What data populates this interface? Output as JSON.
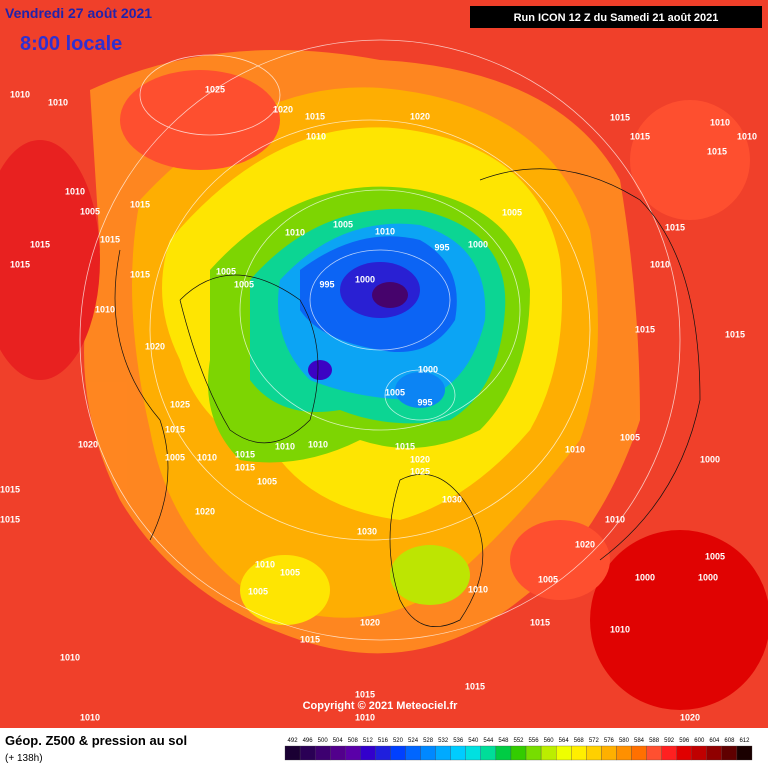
{
  "header": {
    "date": "Vendredi 27 août 2021",
    "time": "8:00 locale",
    "run": "Run ICON 12 Z du Samedi 21 août 2021"
  },
  "copyright": "Copyright © 2021 Meteociel.fr",
  "legend": {
    "title": "Géop. Z500 & pression au sol",
    "lead": "(+ 138h)"
  },
  "colorbar": {
    "ticks": [
      492,
      496,
      500,
      504,
      508,
      512,
      516,
      520,
      524,
      528,
      532,
      536,
      540,
      544,
      548,
      552,
      556,
      560,
      564,
      568,
      572,
      576,
      580,
      584,
      588,
      592,
      596,
      600,
      604,
      608,
      612
    ],
    "colors": [
      "#1a0033",
      "#2a0055",
      "#3d0070",
      "#52008c",
      "#5a00a8",
      "#3300cc",
      "#1f1fdd",
      "#0040ff",
      "#0066ff",
      "#0088ff",
      "#00aaff",
      "#00ccff",
      "#00e0e0",
      "#00dd99",
      "#00cc44",
      "#33cc00",
      "#77dd00",
      "#bbee00",
      "#eeff00",
      "#ffee00",
      "#ffd000",
      "#ffb000",
      "#ff9000",
      "#ff7000",
      "#ff5030",
      "#ff2020",
      "#e00000",
      "#c00000",
      "#900000",
      "#600000",
      "#1a0000"
    ]
  },
  "isobar_labels": [
    1010,
    1010,
    1025,
    1020,
    1015,
    1020,
    1010,
    1015,
    1015,
    1010,
    1015,
    1010,
    1010,
    1005,
    1015,
    1015,
    1015,
    1015,
    1015,
    1010,
    1010,
    1005,
    1010,
    995,
    1000,
    1005,
    1000,
    995,
    1005,
    1005,
    1020,
    1025,
    1015,
    1005,
    1010,
    1015,
    1010,
    1010,
    1015,
    1005,
    1000,
    1005,
    995,
    1015,
    1020,
    1025,
    1030,
    1020,
    1030,
    1010,
    1005,
    1005,
    1015,
    1020,
    1010,
    1015,
    1010,
    1010,
    1010,
    1015,
    1010,
    1010,
    1005,
    1015,
    1015,
    1010,
    1015,
    1000,
    1000,
    1000,
    1005,
    1005,
    1015,
    1010,
    1020,
    1020,
    1015,
    1015,
    1020
  ]
}
